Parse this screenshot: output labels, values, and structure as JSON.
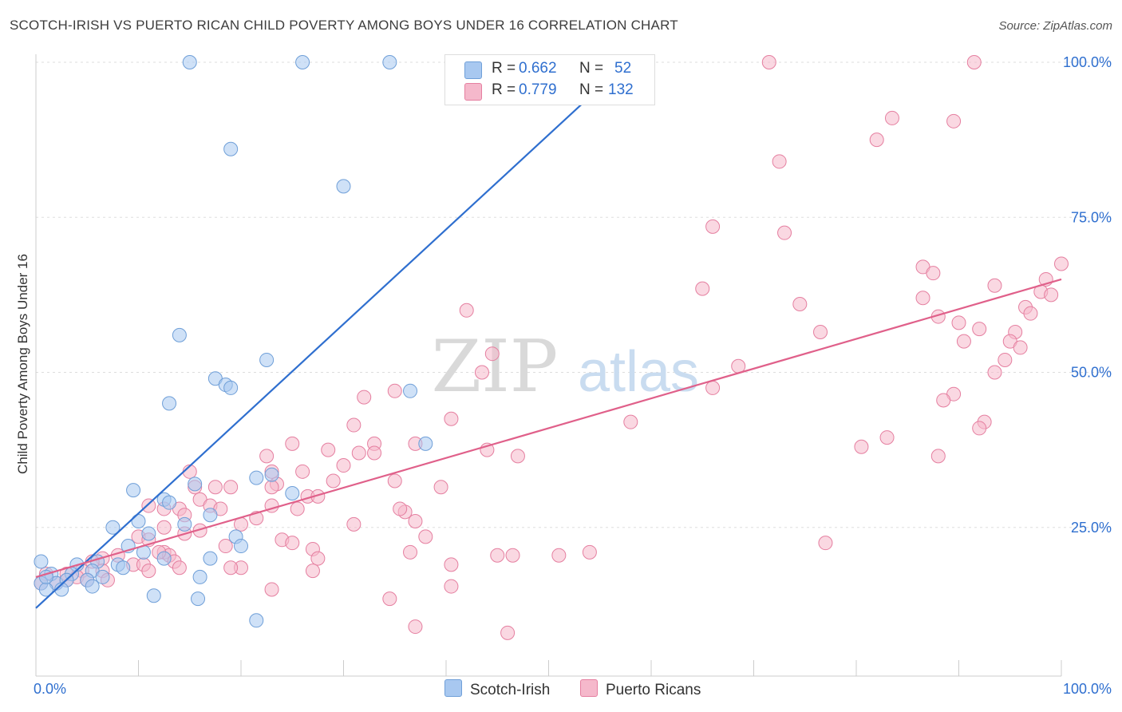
{
  "title": "SCOTCH-IRISH VS PUERTO RICAN CHILD POVERTY AMONG BOYS UNDER 16 CORRELATION CHART",
  "source": "Source: ZipAtlas.com",
  "watermark": {
    "zip": "ZIP",
    "atlas": "atlas"
  },
  "colors": {
    "blue_fill": "#a8c8f0",
    "blue_stroke": "#6f9fd8",
    "blue_line": "#2f6fcf",
    "pink_fill": "#f5b8cb",
    "pink_stroke": "#e57fa0",
    "pink_line": "#e0608a",
    "axis_text": "#2f6fcf",
    "grid": "#dddddd"
  },
  "legend": {
    "scotch": {
      "r_label": "R =",
      "r_value": "0.662",
      "n_label": "N =",
      "n_value": "52"
    },
    "puerto": {
      "r_label": "R =",
      "r_value": "0.779",
      "n_label": "N =",
      "n_value": "132"
    }
  },
  "bottom_legend": {
    "scotch": "Scotch-Irish",
    "puerto": "Puerto Ricans"
  },
  "chart_data": {
    "type": "scatter",
    "title": "SCOTCH-IRISH VS PUERTO RICAN CHILD POVERTY AMONG BOYS UNDER 16 CORRELATION CHART",
    "xlabel": "",
    "ylabel": "Child Poverty Among Boys Under 16",
    "xlim": [
      0,
      100
    ],
    "ylim": [
      0,
      100
    ],
    "x_tick_labels": [
      "0.0%",
      "100.0%"
    ],
    "y_tick_labels": [
      "25.0%",
      "50.0%",
      "75.0%",
      "100.0%"
    ],
    "y_ticks": [
      25,
      50,
      75,
      100
    ],
    "grid": true,
    "legend_position": "top-center",
    "series": [
      {
        "name": "Scotch-Irish",
        "color": "#a8c8f0",
        "trend": {
          "x": [
            0,
            57
          ],
          "y": [
            12,
            99
          ]
        },
        "points": [
          [
            15,
            100
          ],
          [
            26,
            100
          ],
          [
            34.5,
            100
          ],
          [
            19,
            86
          ],
          [
            30,
            80
          ],
          [
            14,
            56
          ],
          [
            22.5,
            52
          ],
          [
            13,
            45
          ],
          [
            17.5,
            49
          ],
          [
            18.5,
            48
          ],
          [
            19,
            47.5
          ],
          [
            36.5,
            47
          ],
          [
            38,
            38.5
          ],
          [
            9.5,
            31
          ],
          [
            12.5,
            29.5
          ],
          [
            13,
            29
          ],
          [
            15.5,
            32
          ],
          [
            23,
            33.5
          ],
          [
            21.5,
            33
          ],
          [
            25,
            30.5
          ],
          [
            7.5,
            25
          ],
          [
            10,
            26
          ],
          [
            11,
            24
          ],
          [
            14.5,
            25.5
          ],
          [
            17,
            27
          ],
          [
            19.5,
            23.5
          ],
          [
            20,
            22
          ],
          [
            9,
            22
          ],
          [
            10.5,
            21
          ],
          [
            12.5,
            20
          ],
          [
            17,
            20
          ],
          [
            4,
            19
          ],
          [
            6,
            19.5
          ],
          [
            8,
            19
          ],
          [
            8.5,
            18.5
          ],
          [
            5.5,
            18
          ],
          [
            3.5,
            17.5
          ],
          [
            6.5,
            17
          ],
          [
            5,
            16.5
          ],
          [
            1.5,
            17.5
          ],
          [
            2,
            16
          ],
          [
            3,
            16.5
          ],
          [
            16,
            17
          ],
          [
            2.5,
            15
          ],
          [
            5.5,
            15.5
          ],
          [
            0.5,
            16
          ],
          [
            1,
            15
          ],
          [
            11.5,
            14
          ],
          [
            15.8,
            13.5
          ],
          [
            21.5,
            10
          ],
          [
            0.5,
            19.5
          ],
          [
            1,
            17
          ]
        ]
      },
      {
        "name": "Puerto Ricans",
        "color": "#f5b8cb",
        "trend": {
          "x": [
            0,
            100
          ],
          "y": [
            17,
            65
          ]
        },
        "points": [
          [
            71.5,
            100
          ],
          [
            91.5,
            100
          ],
          [
            83.5,
            91
          ],
          [
            89.5,
            90.5
          ],
          [
            82,
            87.5
          ],
          [
            72.5,
            84
          ],
          [
            66,
            73.5
          ],
          [
            73,
            72.5
          ],
          [
            100,
            67.5
          ],
          [
            86.5,
            67
          ],
          [
            87.5,
            66
          ],
          [
            98.5,
            65
          ],
          [
            93.5,
            64
          ],
          [
            65,
            63.5
          ],
          [
            98,
            63
          ],
          [
            99,
            62.5
          ],
          [
            86.5,
            62
          ],
          [
            74.5,
            61
          ],
          [
            96.5,
            60.5
          ],
          [
            42,
            60
          ],
          [
            88,
            59
          ],
          [
            97,
            59.5
          ],
          [
            90,
            58
          ],
          [
            76.5,
            56.5
          ],
          [
            92,
            57
          ],
          [
            95.5,
            56.5
          ],
          [
            90.5,
            55
          ],
          [
            95,
            55
          ],
          [
            96,
            54
          ],
          [
            44.5,
            53
          ],
          [
            94.5,
            52
          ],
          [
            68.5,
            51
          ],
          [
            43.5,
            50
          ],
          [
            93.5,
            50
          ],
          [
            66,
            47.5
          ],
          [
            35,
            47
          ],
          [
            32,
            46
          ],
          [
            89.5,
            46.5
          ],
          [
            88.5,
            45.5
          ],
          [
            40.5,
            42.5
          ],
          [
            31,
            41.5
          ],
          [
            92.5,
            42
          ],
          [
            58,
            42
          ],
          [
            92,
            41
          ],
          [
            83,
            39.5
          ],
          [
            80.5,
            38
          ],
          [
            25,
            38.5
          ],
          [
            33,
            38.5
          ],
          [
            28.5,
            37.5
          ],
          [
            44,
            37.5
          ],
          [
            37,
            38.5
          ],
          [
            31.5,
            37
          ],
          [
            33,
            37
          ],
          [
            47,
            36.5
          ],
          [
            88,
            36.5
          ],
          [
            22.5,
            36.5
          ],
          [
            23,
            34
          ],
          [
            30,
            35
          ],
          [
            26,
            34
          ],
          [
            15,
            34
          ],
          [
            35,
            32.5
          ],
          [
            29,
            32.5
          ],
          [
            23.5,
            32
          ],
          [
            23,
            31.5
          ],
          [
            39.5,
            31.5
          ],
          [
            15.5,
            31.5
          ],
          [
            17.5,
            31.5
          ],
          [
            19,
            31.5
          ],
          [
            26.5,
            30
          ],
          [
            27.5,
            30
          ],
          [
            16,
            29.5
          ],
          [
            17,
            28.5
          ],
          [
            11,
            28.5
          ],
          [
            12.5,
            28
          ],
          [
            14,
            28
          ],
          [
            18,
            28
          ],
          [
            23,
            28.5
          ],
          [
            25.5,
            28
          ],
          [
            36,
            27.5
          ],
          [
            35.5,
            28
          ],
          [
            21.5,
            26.5
          ],
          [
            14.5,
            27
          ],
          [
            20,
            25.5
          ],
          [
            31,
            25.5
          ],
          [
            37,
            26
          ],
          [
            12.5,
            25
          ],
          [
            14.5,
            24
          ],
          [
            16,
            24.5
          ],
          [
            10,
            23.5
          ],
          [
            11,
            23
          ],
          [
            24,
            23
          ],
          [
            38,
            23.5
          ],
          [
            25,
            22.5
          ],
          [
            18.5,
            22
          ],
          [
            36.5,
            21
          ],
          [
            12.5,
            21
          ],
          [
            13,
            20.5
          ],
          [
            45,
            20.5
          ],
          [
            46.5,
            20.5
          ],
          [
            51,
            20.5
          ],
          [
            54,
            21
          ],
          [
            77,
            22.5
          ],
          [
            27,
            21.5
          ],
          [
            12,
            21
          ],
          [
            8,
            20.5
          ],
          [
            6.5,
            20
          ],
          [
            27.5,
            20
          ],
          [
            13.5,
            19.5
          ],
          [
            5.5,
            19.5
          ],
          [
            9.5,
            19
          ],
          [
            10.5,
            19
          ],
          [
            20,
            18.5
          ],
          [
            40.5,
            19
          ],
          [
            19,
            18.5
          ],
          [
            27,
            18
          ],
          [
            14,
            18.5
          ],
          [
            11,
            18
          ],
          [
            6.5,
            18
          ],
          [
            4.5,
            18
          ],
          [
            3,
            17.5
          ],
          [
            4,
            17
          ],
          [
            5,
            16.5
          ],
          [
            7,
            16.5
          ],
          [
            1,
            17.5
          ],
          [
            2,
            16
          ],
          [
            3,
            16.5
          ],
          [
            0.5,
            16
          ],
          [
            40.5,
            15.5
          ],
          [
            23,
            15
          ],
          [
            34.5,
            13.5
          ],
          [
            37,
            9
          ],
          [
            46,
            8
          ]
        ]
      }
    ]
  }
}
